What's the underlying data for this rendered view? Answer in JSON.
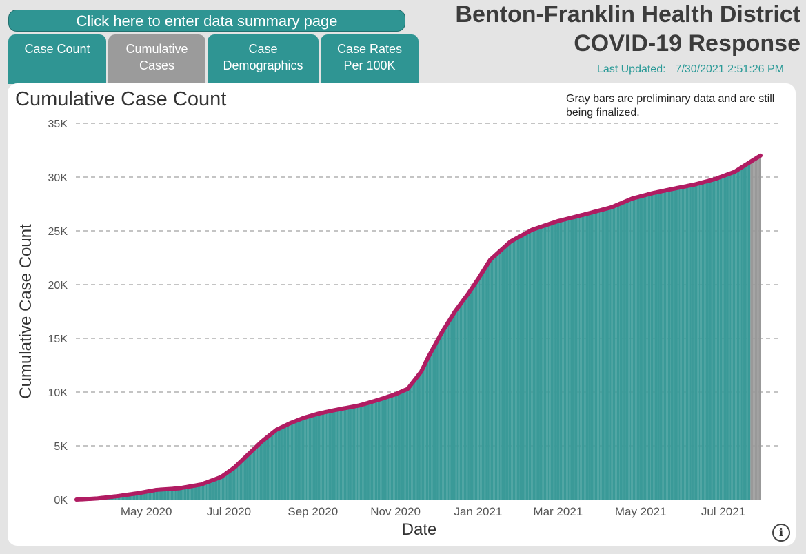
{
  "header": {
    "summary_button": "Click here to enter data summary page",
    "title_line1": "Benton-Franklin Health District",
    "title_line2": "COVID-19 Response",
    "last_updated_label": "Last Updated:",
    "last_updated_value": "7/30/2021 2:51:26 PM"
  },
  "tabs": [
    {
      "line1": "Case Count",
      "line2": ""
    },
    {
      "line1": "Cumulative",
      "line2": "Cases"
    },
    {
      "line1": "Case",
      "line2": "Demographics"
    },
    {
      "line1": "Case Rates",
      "line2": "Per 100K"
    }
  ],
  "colors": {
    "bars": "#3a9a98",
    "preliminary_bars": "#999999",
    "line": "#b01c62",
    "grid": "#888888"
  },
  "chart_data": {
    "type": "bar",
    "title": "Cumulative Case Count",
    "note": "Gray bars are preliminary data and are still being finalized.",
    "xlabel": "Date",
    "ylabel": "Cumulative Case Count",
    "ylim": [
      0,
      35000
    ],
    "yticks": [
      0,
      5000,
      10000,
      15000,
      20000,
      25000,
      30000,
      35000
    ],
    "ytick_labels": [
      "0K",
      "5K",
      "10K",
      "15K",
      "20K",
      "25K",
      "30K",
      "35K"
    ],
    "xticks": [
      {
        "date": "2020-05-01",
        "label": "May 2020"
      },
      {
        "date": "2020-07-01",
        "label": "Jul 2020"
      },
      {
        "date": "2020-09-01",
        "label": "Sep 2020"
      },
      {
        "date": "2020-11-01",
        "label": "Nov 2020"
      },
      {
        "date": "2021-01-01",
        "label": "Jan 2021"
      },
      {
        "date": "2021-03-01",
        "label": "Mar 2021"
      },
      {
        "date": "2021-05-01",
        "label": "May 2021"
      },
      {
        "date": "2021-07-01",
        "label": "Jul 2021"
      }
    ],
    "x_start": "2020-03-10",
    "x_end": "2021-07-29",
    "preliminary_from": "2021-07-22",
    "series": [
      {
        "name": "Cumulative Case Count",
        "points": [
          [
            "2020-03-10",
            0
          ],
          [
            "2020-03-25",
            100
          ],
          [
            "2020-04-10",
            330
          ],
          [
            "2020-04-25",
            600
          ],
          [
            "2020-05-08",
            900
          ],
          [
            "2020-05-25",
            1050
          ],
          [
            "2020-06-10",
            1400
          ],
          [
            "2020-06-25",
            2100
          ],
          [
            "2020-07-05",
            3000
          ],
          [
            "2020-07-15",
            4200
          ],
          [
            "2020-07-25",
            5400
          ],
          [
            "2020-08-05",
            6500
          ],
          [
            "2020-08-15",
            7100
          ],
          [
            "2020-08-25",
            7600
          ],
          [
            "2020-09-05",
            8000
          ],
          [
            "2020-09-20",
            8400
          ],
          [
            "2020-10-05",
            8750
          ],
          [
            "2020-10-20",
            9300
          ],
          [
            "2020-11-01",
            9800
          ],
          [
            "2020-11-10",
            10300
          ],
          [
            "2020-11-20",
            11900
          ],
          [
            "2020-11-25",
            13200
          ],
          [
            "2020-12-05",
            15500
          ],
          [
            "2020-12-15",
            17500
          ],
          [
            "2020-12-25",
            19200
          ],
          [
            "2021-01-01",
            20500
          ],
          [
            "2021-01-10",
            22300
          ],
          [
            "2021-01-25",
            24000
          ],
          [
            "2021-02-10",
            25100
          ],
          [
            "2021-03-01",
            25900
          ],
          [
            "2021-03-20",
            26500
          ],
          [
            "2021-04-10",
            27200
          ],
          [
            "2021-04-25",
            28000
          ],
          [
            "2021-05-10",
            28500
          ],
          [
            "2021-05-25",
            28900
          ],
          [
            "2021-06-10",
            29300
          ],
          [
            "2021-06-25",
            29800
          ],
          [
            "2021-07-10",
            30500
          ],
          [
            "2021-07-20",
            31300
          ],
          [
            "2021-07-29",
            32000
          ]
        ]
      }
    ]
  }
}
